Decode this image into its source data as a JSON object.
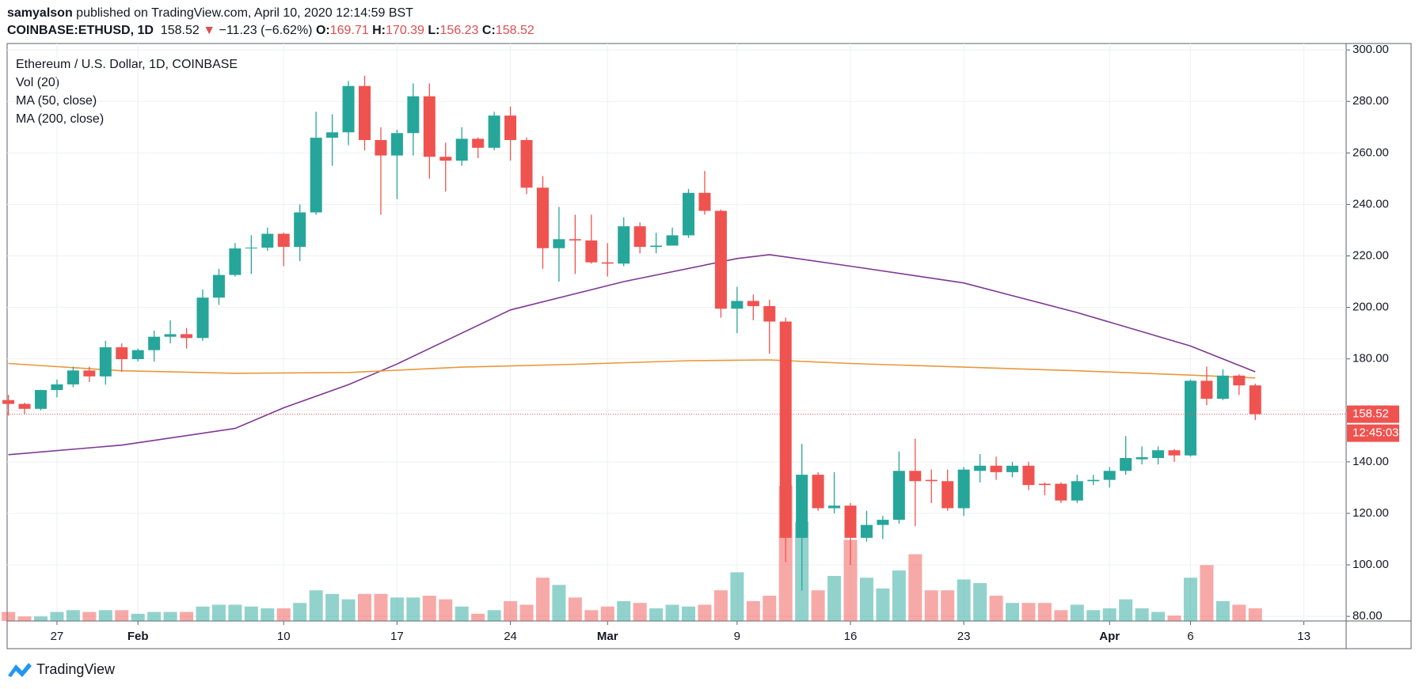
{
  "header": {
    "author": "samyalson",
    "published": "published on TradingView.com, April 10, 2020 12:14:59 BST",
    "symbol": "COINBASE:ETHUSD, 1D",
    "arrow": "▼",
    "change": "−11.23 (−6.62%)",
    "o_label": "O:",
    "h_label": "H:",
    "l_label": "L:",
    "c_label": "C:"
  },
  "footer": {
    "brand": "TradingView"
  },
  "chart_data": {
    "type": "candlestick",
    "title": "Ethereum / U.S. Dollar, 1D, COINBASE",
    "volume_name": "Vol (20)",
    "countdown": "12:45:03",
    "up_color": "#26a69a",
    "down_color": "#ef5350",
    "grid": true,
    "x": [
      "2020-01-24",
      "2020-01-25",
      "2020-01-26",
      "2020-01-27",
      "2020-01-28",
      "2020-01-29",
      "2020-01-30",
      "2020-01-31",
      "2020-02-01",
      "2020-02-02",
      "2020-02-03",
      "2020-02-04",
      "2020-02-05",
      "2020-02-06",
      "2020-02-07",
      "2020-02-08",
      "2020-02-09",
      "2020-02-10",
      "2020-02-11",
      "2020-02-12",
      "2020-02-13",
      "2020-02-14",
      "2020-02-15",
      "2020-02-16",
      "2020-02-17",
      "2020-02-18",
      "2020-02-19",
      "2020-02-20",
      "2020-02-21",
      "2020-02-22",
      "2020-02-23",
      "2020-02-24",
      "2020-02-25",
      "2020-02-26",
      "2020-02-27",
      "2020-02-28",
      "2020-02-29",
      "2020-03-01",
      "2020-03-02",
      "2020-03-03",
      "2020-03-04",
      "2020-03-05",
      "2020-03-06",
      "2020-03-07",
      "2020-03-08",
      "2020-03-09",
      "2020-03-10",
      "2020-03-11",
      "2020-03-12",
      "2020-03-13",
      "2020-03-14",
      "2020-03-15",
      "2020-03-16",
      "2020-03-17",
      "2020-03-18",
      "2020-03-19",
      "2020-03-20",
      "2020-03-21",
      "2020-03-22",
      "2020-03-23",
      "2020-03-24",
      "2020-03-25",
      "2020-03-26",
      "2020-03-27",
      "2020-03-28",
      "2020-03-29",
      "2020-03-30",
      "2020-03-31",
      "2020-04-01",
      "2020-04-02",
      "2020-04-03",
      "2020-04-04",
      "2020-04-05",
      "2020-04-06",
      "2020-04-07",
      "2020-04-08",
      "2020-04-09",
      "2020-04-10"
    ],
    "open": [
      164,
      162.5,
      160.6,
      167.9,
      170.1,
      175.5,
      173.2,
      184.5,
      179.9,
      183.4,
      188.6,
      189.6,
      188.1,
      203.8,
      212.6,
      222.9,
      223.2,
      228.6,
      223.5,
      236.9,
      265.9,
      268,
      286,
      265,
      259,
      267.7,
      282,
      258.5,
      257,
      265.5,
      262,
      274.5,
      265,
      246.5,
      223,
      226.5,
      226,
      217.5,
      217,
      231.5,
      223.5,
      224,
      228,
      244.5,
      237.5,
      199.5,
      202.5,
      200.5,
      194.5,
      110.5,
      135,
      122,
      123,
      110.5,
      115.5,
      117.5,
      136.5,
      133,
      132.5,
      122,
      136.5,
      138.5,
      136,
      138.5,
      131.5,
      131.5,
      125,
      132.5,
      133,
      136.5,
      141,
      141.5,
      144.5,
      142.5,
      171.5,
      164.5,
      173.5,
      169.71
    ],
    "high": [
      166,
      163,
      168,
      172,
      177,
      177,
      187,
      186,
      184,
      191,
      195,
      192,
      207,
      215,
      225,
      228,
      231,
      229,
      240,
      276,
      275,
      288,
      290,
      270,
      269,
      287,
      287,
      264,
      270,
      266,
      276,
      278,
      266,
      251,
      239,
      236,
      236,
      225,
      235,
      233,
      229,
      231,
      246,
      253,
      238,
      208,
      205,
      203,
      196,
      147,
      136,
      136,
      124,
      121,
      119,
      144,
      149,
      137,
      137,
      138,
      143,
      142,
      140,
      140,
      132,
      132,
      135,
      135,
      138,
      150,
      146,
      146,
      145,
      172,
      177,
      176,
      174,
      170.39
    ],
    "low": [
      158,
      158.5,
      160,
      165,
      169,
      171,
      170,
      175,
      179,
      179,
      186,
      184,
      187,
      201,
      212,
      213,
      222,
      216,
      218,
      236,
      255,
      263,
      261,
      236,
      242,
      259,
      250,
      245,
      255,
      258,
      261,
      257,
      244,
      215,
      210,
      213,
      217,
      212,
      216,
      221,
      221,
      224,
      227,
      236,
      196,
      190,
      195,
      182,
      101,
      90,
      121,
      120,
      100,
      109,
      110,
      116,
      115,
      124,
      121,
      119,
      132,
      133,
      134,
      129,
      127,
      124,
      124,
      131,
      130,
      135,
      139,
      139,
      140,
      142,
      162,
      164,
      166,
      156.23
    ],
    "close": [
      162.5,
      160.6,
      167.9,
      170.1,
      175.5,
      173.2,
      184.5,
      179.9,
      183.4,
      188.6,
      189.6,
      188.1,
      203.8,
      212.6,
      222.9,
      223.2,
      228.6,
      223.5,
      236.9,
      265.9,
      268,
      286,
      265,
      259,
      267.7,
      282,
      258.5,
      257,
      265.5,
      262,
      274.5,
      265,
      246.5,
      223,
      226.5,
      226,
      217.5,
      217,
      231.5,
      223.5,
      224,
      228,
      244.5,
      237.5,
      199.5,
      202.5,
      200.5,
      194.5,
      110.5,
      135,
      122,
      123,
      110.5,
      115.5,
      117.5,
      136.5,
      132.5,
      132.5,
      122,
      137,
      138.5,
      136,
      138.5,
      131,
      131,
      125,
      132.5,
      133,
      136.5,
      141.5,
      141.8,
      144.5,
      142.5,
      171.5,
      164.5,
      173.5,
      169.71,
      158.52
    ],
    "volume": [
      10,
      5,
      5,
      10,
      12,
      10,
      12,
      12,
      8,
      10,
      10,
      10,
      16,
      18,
      18,
      16,
      14,
      14,
      20,
      34,
      30,
      24,
      30,
      30,
      26,
      26,
      28,
      24,
      16,
      8,
      12,
      22,
      18,
      48,
      40,
      26,
      12,
      16,
      22,
      20,
      14,
      18,
      16,
      18,
      34,
      54,
      22,
      28,
      150,
      110,
      34,
      50,
      90,
      48,
      36,
      56,
      74,
      34,
      34,
      46,
      42,
      28,
      20,
      20,
      20,
      12,
      18,
      12,
      14,
      24,
      14,
      10,
      6,
      48,
      62,
      22,
      18,
      14
    ],
    "series": [
      {
        "name": "MA (50, close)",
        "color": "#7e3794",
        "x": [
          "2020-01-24",
          "2020-01-31",
          "2020-02-07",
          "2020-02-10",
          "2020-02-14",
          "2020-02-17",
          "2020-02-24",
          "2020-03-02",
          "2020-03-09",
          "2020-03-11",
          "2020-03-16",
          "2020-03-23",
          "2020-03-30",
          "2020-04-06",
          "2020-04-10"
        ],
        "values": [
          142.8,
          146.5,
          153,
          161,
          170,
          178,
          199,
          210,
          219,
          220.5,
          216,
          209.5,
          198,
          185,
          175
        ]
      },
      {
        "name": "MA (200, close)",
        "color": "#e8983a",
        "x": [
          "2020-01-24",
          "2020-01-31",
          "2020-02-07",
          "2020-02-14",
          "2020-02-21",
          "2020-02-28",
          "2020-03-06",
          "2020-03-11",
          "2020-03-16",
          "2020-03-23",
          "2020-03-30",
          "2020-04-06",
          "2020-04-10"
        ],
        "values": [
          178.2,
          175.4,
          174.4,
          174.7,
          176.8,
          177.9,
          179.3,
          179.6,
          178.2,
          176.8,
          175.4,
          173.7,
          172.6
        ]
      }
    ],
    "ylim": [
      78.2,
      302.5
    ],
    "yticks": [
      {
        "value": 80,
        "label": "80.00"
      },
      {
        "value": 100,
        "label": "100.00"
      },
      {
        "value": 120,
        "label": "120.00"
      },
      {
        "value": 140,
        "label": "140.00"
      },
      {
        "value": 160,
        "label": "160.00"
      },
      {
        "value": 180,
        "label": "180.00"
      },
      {
        "value": 200,
        "label": "200.00"
      },
      {
        "value": 220,
        "label": "220.00"
      },
      {
        "value": 240,
        "label": "240.00"
      },
      {
        "value": 260,
        "label": "260.00"
      },
      {
        "value": 280,
        "label": "280.00"
      },
      {
        "value": 300,
        "label": "300.00"
      }
    ],
    "xticks": [
      {
        "value": "2020-01-27",
        "label": "27"
      },
      {
        "value": "2020-02-01",
        "label": "Feb"
      },
      {
        "value": "2020-02-10",
        "label": "10"
      },
      {
        "value": "2020-02-17",
        "label": "17"
      },
      {
        "value": "2020-02-24",
        "label": "24"
      },
      {
        "value": "2020-03-01",
        "label": "Mar"
      },
      {
        "value": "2020-03-09",
        "label": "9"
      },
      {
        "value": "2020-03-16",
        "label": "16"
      },
      {
        "value": "2020-03-23",
        "label": "23"
      },
      {
        "value": "2020-04-01",
        "label": "Apr"
      },
      {
        "value": "2020-04-06",
        "label": "6"
      },
      {
        "value": "2020-04-13",
        "label": "13"
      }
    ]
  }
}
